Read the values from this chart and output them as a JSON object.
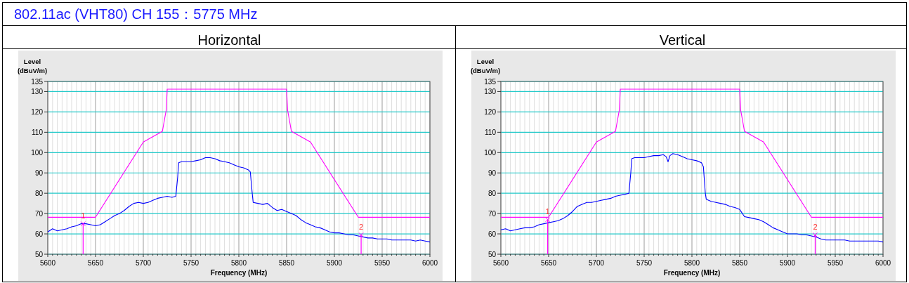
{
  "chart_data": [
    {
      "type": "line",
      "title": "Horizontal",
      "xlabel": "Frequency (MHz)",
      "ylabel": "Level (dBuV/m)",
      "annotations": [
        "802.11ac (VHT80) CH 155：5775 MHz",
        {
          "text": "1",
          "x": 5637,
          "y": 65
        },
        {
          "text": "2",
          "x": 5928,
          "y": 59.5
        }
      ],
      "xlim": [
        5600,
        6000
      ],
      "ylim": [
        50,
        135
      ],
      "grid": true,
      "xticks": [
        5600,
        {
          "value": 5605,
          "label": null
        },
        {
          "value": 5610,
          "label": null
        },
        {
          "value": 5615,
          "label": null
        },
        {
          "value": 5620,
          "label": null
        },
        {
          "value": 5625,
          "label": null
        },
        {
          "value": 5630,
          "label": null
        },
        {
          "value": 5635,
          "label": null
        },
        {
          "value": 5640,
          "label": null
        },
        {
          "value": 5645,
          "label": null
        },
        5650,
        {
          "value": 5655,
          "label": null
        },
        {
          "value": 5660,
          "label": null
        },
        {
          "value": 5665,
          "label": null
        },
        {
          "value": 5670,
          "label": null
        },
        {
          "value": 5675,
          "label": null
        },
        {
          "value": 5680,
          "label": null
        },
        {
          "value": 5685,
          "label": null
        },
        {
          "value": 5690,
          "label": null
        },
        {
          "value": 5695,
          "label": null
        },
        5700,
        {
          "value": 5705,
          "label": null
        },
        {
          "value": 5710,
          "label": null
        },
        {
          "value": 5715,
          "label": null
        },
        {
          "value": 5720,
          "label": null
        },
        {
          "value": 5725,
          "label": null
        },
        {
          "value": 5730,
          "label": null
        },
        {
          "value": 5735,
          "label": null
        },
        {
          "value": 5740,
          "label": null
        },
        {
          "value": 5745,
          "label": null
        },
        5750,
        {
          "value": 5755,
          "label": null
        },
        {
          "value": 5760,
          "label": null
        },
        {
          "value": 5765,
          "label": null
        },
        {
          "value": 5770,
          "label": null
        },
        {
          "value": 5775,
          "label": null
        },
        {
          "value": 5780,
          "label": null
        },
        {
          "value": 5785,
          "label": null
        },
        {
          "value": 5790,
          "label": null
        },
        {
          "value": 5795,
          "label": null
        },
        5800,
        {
          "value": 5805,
          "label": null
        },
        {
          "value": 5810,
          "label": null
        },
        {
          "value": 5815,
          "label": null
        },
        {
          "value": 5820,
          "label": null
        },
        {
          "value": 5825,
          "label": null
        },
        {
          "value": 5830,
          "label": null
        },
        {
          "value": 5835,
          "label": null
        },
        {
          "value": 5840,
          "label": null
        },
        {
          "value": 5845,
          "label": null
        },
        5850,
        {
          "value": 5855,
          "label": null
        },
        {
          "value": 5860,
          "label": null
        },
        {
          "value": 5865,
          "label": null
        },
        {
          "value": 5870,
          "label": null
        },
        {
          "value": 5875,
          "label": null
        },
        {
          "value": 5880,
          "label": null
        },
        {
          "value": 5885,
          "label": null
        },
        {
          "value": 5890,
          "label": null
        },
        {
          "value": 5895,
          "label": null
        },
        5900,
        {
          "value": 5905,
          "label": null
        },
        {
          "value": 5910,
          "label": null
        },
        {
          "value": 5915,
          "label": null
        },
        {
          "value": 5920,
          "label": null
        },
        {
          "value": 5925,
          "label": null
        },
        {
          "value": 5930,
          "label": null
        },
        {
          "value": 5935,
          "label": null
        },
        {
          "value": 5940,
          "label": null
        },
        {
          "value": 5945,
          "label": null
        },
        5950,
        {
          "value": 5955,
          "label": null
        },
        {
          "value": 5960,
          "label": null
        },
        {
          "value": 5965,
          "label": null
        },
        {
          "value": 5970,
          "label": null
        },
        {
          "value": 5975,
          "label": null
        },
        {
          "value": 5980,
          "label": null
        },
        {
          "value": 5985,
          "label": null
        },
        {
          "value": 5990,
          "label": null
        },
        {
          "value": 5995,
          "label": null
        },
        6000
      ],
      "yticks": [
        50,
        60,
        70,
        80,
        90,
        100,
        110,
        120,
        130,
        135
      ],
      "series": [
        {
          "color": "#ff00ff",
          "x": [
            5600,
            5650,
            5700,
            5720,
            5724,
            5725,
            5850,
            5851,
            5855,
            5875,
            5925,
            6000
          ],
          "values": [
            68.2,
            68.2,
            105.2,
            110.5,
            121,
            131.2,
            131.2,
            121,
            110.5,
            105.2,
            68.2,
            68.2
          ]
        },
        {
          "color": "#0000ff",
          "x": [
            5600,
            5605,
            5610,
            5615,
            5620,
            5625,
            5630,
            5635,
            5640,
            5645,
            5650,
            5655,
            5660,
            5665,
            5670,
            5675,
            5680,
            5685,
            5690,
            5695,
            5700,
            5705,
            5710,
            5715,
            5720,
            5725,
            5730,
            5734,
            5736,
            5737,
            5740,
            5745,
            5750,
            5755,
            5760,
            5765,
            5770,
            5775,
            5780,
            5785,
            5790,
            5795,
            5800,
            5805,
            5810,
            5812,
            5814,
            5815,
            5820,
            5825,
            5830,
            5835,
            5840,
            5845,
            5850,
            5855,
            5860,
            5865,
            5870,
            5875,
            5880,
            5885,
            5890,
            5895,
            5900,
            5905,
            5910,
            5915,
            5920,
            5925,
            5930,
            5935,
            5940,
            5945,
            5950,
            5955,
            5960,
            5965,
            5970,
            5975,
            5980,
            5985,
            5990,
            5995,
            6000
          ],
          "values": [
            61,
            62.5,
            61.5,
            62,
            62.5,
            63.5,
            64,
            65,
            65,
            64.5,
            64,
            64.5,
            66,
            67.5,
            69,
            70,
            71.5,
            73.5,
            75,
            75.5,
            75,
            75.5,
            76.5,
            77.5,
            78,
            78.5,
            78,
            78.5,
            88,
            95,
            95.5,
            95.5,
            95.5,
            96,
            96.5,
            97.5,
            97.5,
            97,
            96,
            95.5,
            95,
            94,
            93,
            92.5,
            91.5,
            90.5,
            80,
            75.5,
            75,
            74.5,
            75,
            73,
            71.5,
            72,
            71,
            70,
            69,
            67,
            65.5,
            64.5,
            63.5,
            63,
            62,
            61,
            60.5,
            60.5,
            60,
            59.5,
            59.5,
            59,
            58.5,
            58,
            58,
            57.5,
            57.5,
            57.5,
            57,
            57,
            57,
            57,
            57,
            56.5,
            57,
            56.5,
            56
          ]
        }
      ]
    },
    {
      "type": "line",
      "title": "Vertical",
      "xlabel": "Frequency (MHz)",
      "ylabel": "Level (dBuV/m)",
      "annotations": [
        {
          "text": "1",
          "x": 5649,
          "y": 67
        },
        {
          "text": "2",
          "x": 5929,
          "y": 59.5
        }
      ],
      "xlim": [
        5600,
        6000
      ],
      "ylim": [
        50,
        135
      ],
      "grid": true,
      "xticks": [
        5600,
        {
          "value": 5605,
          "label": null
        },
        {
          "value": 5610,
          "label": null
        },
        {
          "value": 5615,
          "label": null
        },
        {
          "value": 5620,
          "label": null
        },
        {
          "value": 5625,
          "label": null
        },
        {
          "value": 5630,
          "label": null
        },
        {
          "value": 5635,
          "label": null
        },
        {
          "value": 5640,
          "label": null
        },
        {
          "value": 5645,
          "label": null
        },
        5650,
        {
          "value": 5655,
          "label": null
        },
        {
          "value": 5660,
          "label": null
        },
        {
          "value": 5665,
          "label": null
        },
        {
          "value": 5670,
          "label": null
        },
        {
          "value": 5675,
          "label": null
        },
        {
          "value": 5680,
          "label": null
        },
        {
          "value": 5685,
          "label": null
        },
        {
          "value": 5690,
          "label": null
        },
        {
          "value": 5695,
          "label": null
        },
        5700,
        {
          "value": 5705,
          "label": null
        },
        {
          "value": 5710,
          "label": null
        },
        {
          "value": 5715,
          "label": null
        },
        {
          "value": 5720,
          "label": null
        },
        {
          "value": 5725,
          "label": null
        },
        {
          "value": 5730,
          "label": null
        },
        {
          "value": 5735,
          "label": null
        },
        {
          "value": 5740,
          "label": null
        },
        {
          "value": 5745,
          "label": null
        },
        5750,
        {
          "value": 5755,
          "label": null
        },
        {
          "value": 5760,
          "label": null
        },
        {
          "value": 5765,
          "label": null
        },
        {
          "value": 5770,
          "label": null
        },
        {
          "value": 5775,
          "label": null
        },
        {
          "value": 5780,
          "label": null
        },
        {
          "value": 5785,
          "label": null
        },
        {
          "value": 5790,
          "label": null
        },
        {
          "value": 5795,
          "label": null
        },
        5800,
        {
          "value": 5805,
          "label": null
        },
        {
          "value": 5810,
          "label": null
        },
        {
          "value": 5815,
          "label": null
        },
        {
          "value": 5820,
          "label": null
        },
        {
          "value": 5825,
          "label": null
        },
        {
          "value": 5830,
          "label": null
        },
        {
          "value": 5835,
          "label": null
        },
        {
          "value": 5840,
          "label": null
        },
        {
          "value": 5845,
          "label": null
        },
        5850,
        {
          "value": 5855,
          "label": null
        },
        {
          "value": 5860,
          "label": null
        },
        {
          "value": 5865,
          "label": null
        },
        {
          "value": 5870,
          "label": null
        },
        {
          "value": 5875,
          "label": null
        },
        {
          "value": 5880,
          "label": null
        },
        {
          "value": 5885,
          "label": null
        },
        {
          "value": 5890,
          "label": null
        },
        {
          "value": 5895,
          "label": null
        },
        5900,
        {
          "value": 5905,
          "label": null
        },
        {
          "value": 5910,
          "label": null
        },
        {
          "value": 5915,
          "label": null
        },
        {
          "value": 5920,
          "label": null
        },
        {
          "value": 5925,
          "label": null
        },
        {
          "value": 5930,
          "label": null
        },
        {
          "value": 5935,
          "label": null
        },
        {
          "value": 5940,
          "label": null
        },
        {
          "value": 5945,
          "label": null
        },
        5950,
        {
          "value": 5955,
          "label": null
        },
        {
          "value": 5960,
          "label": null
        },
        {
          "value": 5965,
          "label": null
        },
        {
          "value": 5970,
          "label": null
        },
        {
          "value": 5975,
          "label": null
        },
        {
          "value": 5980,
          "label": null
        },
        {
          "value": 5985,
          "label": null
        },
        {
          "value": 5990,
          "label": null
        },
        {
          "value": 5995,
          "label": null
        },
        6000
      ],
      "yticks": [
        50,
        60,
        70,
        80,
        90,
        100,
        110,
        120,
        130,
        135
      ],
      "series": [
        {
          "color": "#ff00ff",
          "x": [
            5600,
            5650,
            5700,
            5720,
            5724,
            5725,
            5850,
            5851,
            5855,
            5875,
            5925,
            6000
          ],
          "values": [
            68.2,
            68.2,
            105.2,
            110.5,
            121,
            131.2,
            131.2,
            121,
            110.5,
            105.2,
            68.2,
            68.2
          ]
        },
        {
          "color": "#0000ff",
          "x": [
            5600,
            5605,
            5610,
            5615,
            5620,
            5625,
            5630,
            5635,
            5640,
            5645,
            5650,
            5655,
            5660,
            5665,
            5670,
            5675,
            5680,
            5685,
            5690,
            5695,
            5700,
            5705,
            5710,
            5715,
            5720,
            5725,
            5730,
            5734,
            5736,
            5737,
            5740,
            5745,
            5750,
            5755,
            5760,
            5765,
            5770,
            5773,
            5775,
            5777,
            5780,
            5785,
            5790,
            5795,
            5800,
            5805,
            5810,
            5812,
            5814,
            5815,
            5820,
            5825,
            5830,
            5835,
            5840,
            5845,
            5850,
            5855,
            5860,
            5865,
            5870,
            5875,
            5880,
            5885,
            5890,
            5895,
            5900,
            5905,
            5910,
            5915,
            5920,
            5925,
            5930,
            5935,
            5940,
            5945,
            5950,
            5955,
            5960,
            5965,
            5970,
            5975,
            5980,
            5985,
            5990,
            5995,
            6000
          ],
          "values": [
            62,
            62.5,
            61.5,
            62,
            62.5,
            63,
            63,
            63.5,
            64.5,
            65,
            65.5,
            66,
            66.5,
            67.5,
            69,
            71,
            73.5,
            74.5,
            75.5,
            75.5,
            76,
            76.5,
            77,
            77.5,
            78.5,
            79,
            79.5,
            80,
            90,
            97,
            97.5,
            97.5,
            97.5,
            98,
            98.5,
            98.5,
            99,
            98,
            95.5,
            98.5,
            99.5,
            99,
            98,
            97,
            96.5,
            96,
            95,
            93,
            80,
            77,
            76,
            75.5,
            75,
            74.5,
            73.5,
            73,
            72,
            68.5,
            68,
            67.5,
            67,
            66,
            64.5,
            63,
            62,
            61,
            60,
            60,
            60,
            59.5,
            59.5,
            59,
            58.5,
            57.5,
            57,
            57,
            57,
            57,
            57,
            56.5,
            56.5,
            56.5,
            56.5,
            56.5,
            56.5,
            56.5,
            56
          ]
        }
      ]
    }
  ]
}
